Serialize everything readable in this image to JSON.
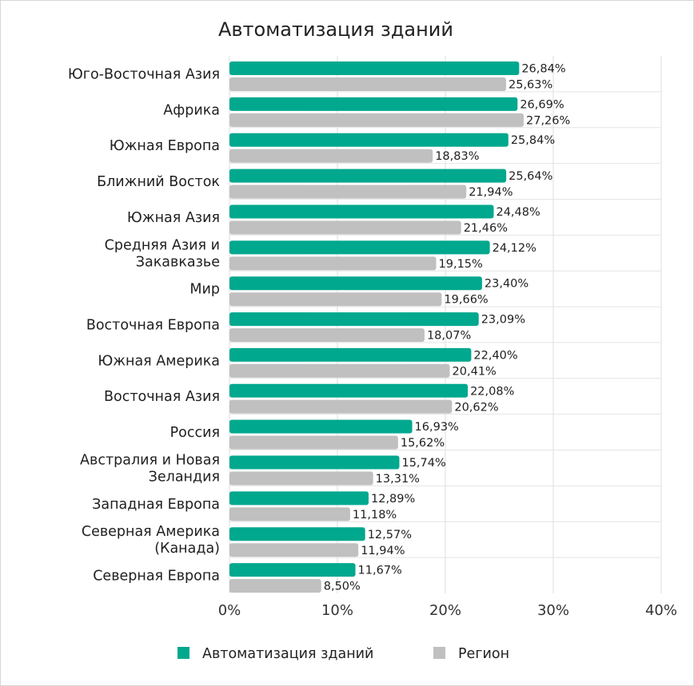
{
  "chart_data": {
    "type": "bar",
    "orientation": "horizontal",
    "title": "Автоматизация зданий",
    "categories": [
      [
        "Юго-Восточная Азия"
      ],
      [
        "Африка"
      ],
      [
        "Южная Европа"
      ],
      [
        "Ближний Восток"
      ],
      [
        "Южная Азия"
      ],
      [
        "Средняя Азия и",
        "Закавказье"
      ],
      [
        "Мир"
      ],
      [
        "Восточная Европа"
      ],
      [
        "Южная Америка"
      ],
      [
        "Восточная Азия"
      ],
      [
        "Россия"
      ],
      [
        "Австралия и Новая",
        "Зеландия"
      ],
      [
        "Западная Европа"
      ],
      [
        "Северная Америка",
        "(Канада)"
      ],
      [
        "Северная Европа"
      ]
    ],
    "series": [
      {
        "name": "Автоматизация зданий",
        "color": "#00a88e",
        "values": [
          26.84,
          26.69,
          25.84,
          25.64,
          24.48,
          24.12,
          23.4,
          23.09,
          22.4,
          22.08,
          16.93,
          15.74,
          12.89,
          12.57,
          11.67
        ],
        "labels": [
          "26,84%",
          "26,69%",
          "25,84%",
          "25,64%",
          "24,48%",
          "24,12%",
          "23,40%",
          "23,09%",
          "22,40%",
          "22,08%",
          "16,93%",
          "15,74%",
          "12,89%",
          "12,57%",
          "11,67%"
        ]
      },
      {
        "name": "Регион",
        "color": "#c0c0c0",
        "values": [
          25.63,
          27.26,
          18.83,
          21.94,
          21.46,
          19.15,
          19.66,
          18.07,
          20.41,
          20.62,
          15.62,
          13.31,
          11.18,
          11.94,
          8.5
        ],
        "labels": [
          "25,63%",
          "27,26%",
          "18,83%",
          "21,94%",
          "21,46%",
          "19,15%",
          "19,66%",
          "18,07%",
          "20,41%",
          "20,62%",
          "15,62%",
          "13,31%",
          "11,18%",
          "11,94%",
          "8,50%"
        ]
      }
    ],
    "xlim": [
      0,
      40
    ],
    "xticks": [
      0,
      10,
      20,
      30,
      40
    ],
    "xtick_labels": [
      "0%",
      "10%",
      "20%",
      "30%",
      "40%"
    ],
    "grid": true,
    "legend_position": "bottom"
  }
}
